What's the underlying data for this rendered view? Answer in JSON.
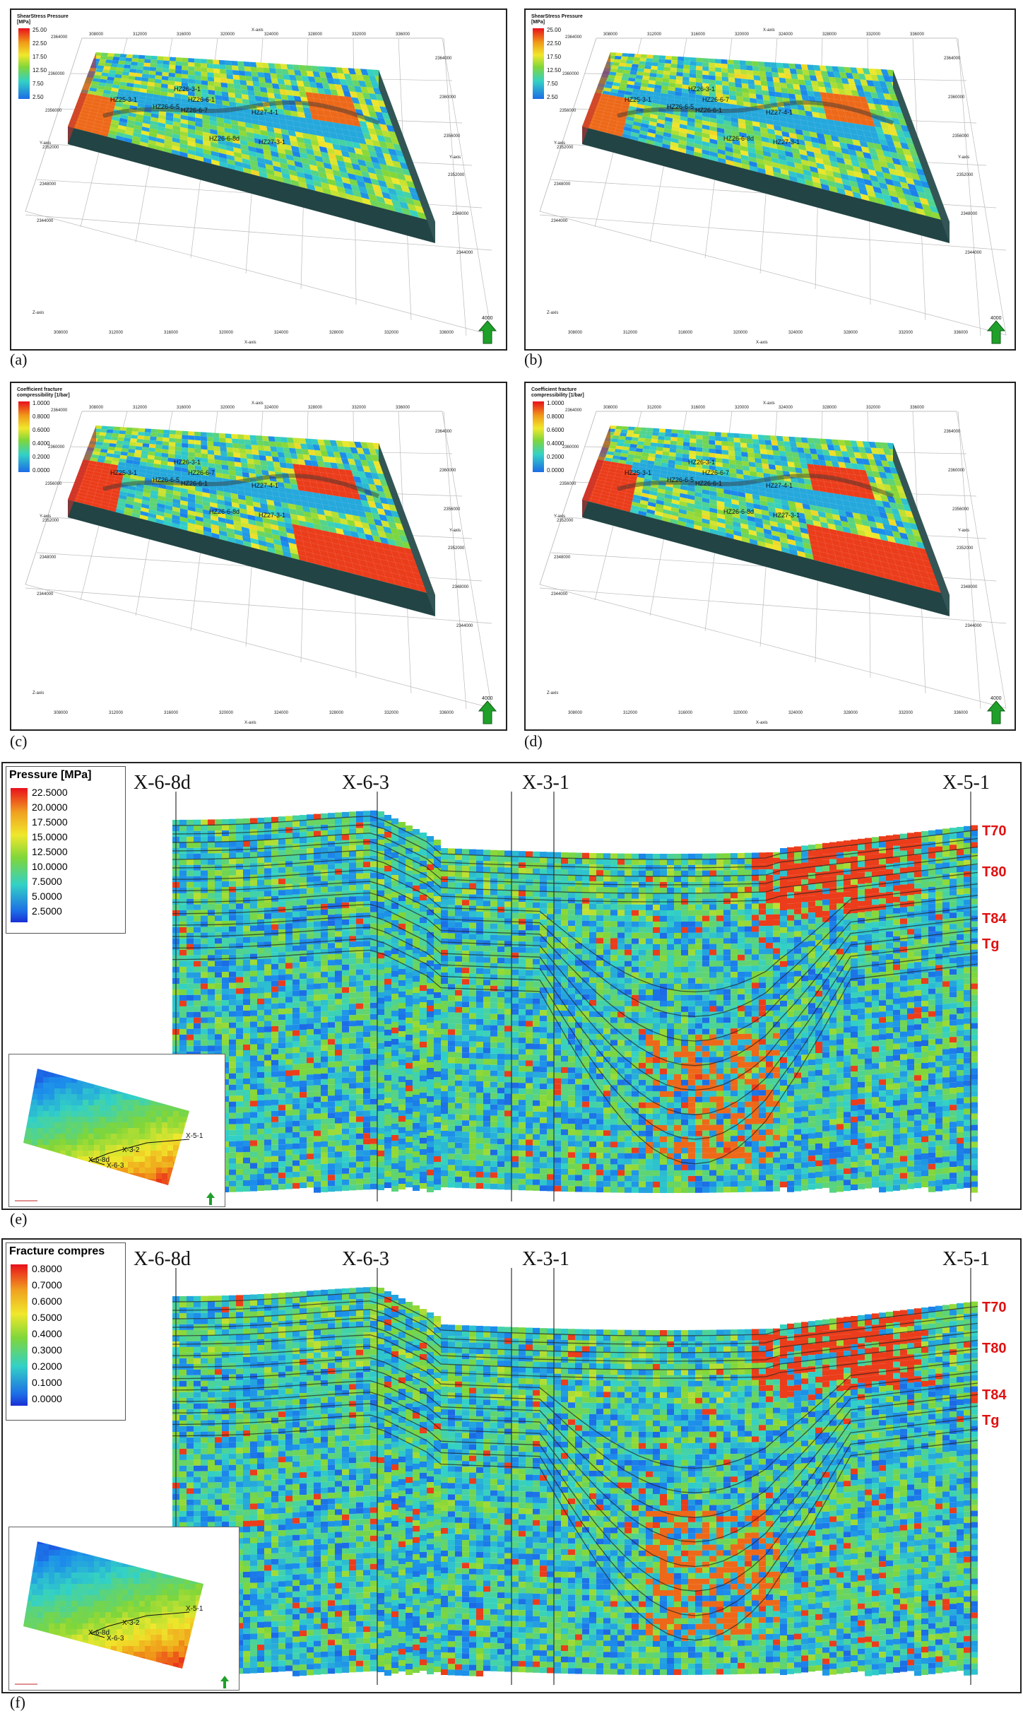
{
  "panels_3d": [
    {
      "caption": "(a)",
      "legend_title": "ShearStress Pressure [MPa]",
      "ticks": [
        "25.00",
        "22.50",
        "17.50",
        "12.50",
        "7.50",
        "2.50"
      ],
      "wells": [
        "HZ26-3-1",
        "HZ26-6-1",
        "HZ26-6-5",
        "HZ26-6-7",
        "HZ27-4-1",
        "HZ26-6-8d",
        "HZ27-3-1",
        "HZ25-3-1"
      ],
      "x_axis": "X-axis",
      "y_axis": "Y-axis",
      "z_axis": "Z-axis",
      "x_ticks": [
        "308000",
        "312000",
        "316000",
        "320000",
        "324000",
        "328000",
        "332000",
        "336000"
      ],
      "y_ticks": [
        "2364000",
        "2360000",
        "2356000",
        "2352000",
        "2348000",
        "2344000"
      ]
    },
    {
      "caption": "(b)",
      "legend_title": "ShearStress Pressure [MPa]",
      "ticks": [
        "25.00",
        "22.50",
        "17.50",
        "12.50",
        "7.50",
        "2.50"
      ],
      "wells": [
        "HZ26-3-1",
        "HZ26-6-7",
        "HZ26-6-5",
        "HZ26-6-1",
        "HZ27-4-1",
        "HZ26-6-8d",
        "HZ27-3-1",
        "HZ25-3-1"
      ],
      "x_axis": "X-axis",
      "y_axis": "Y-axis",
      "z_axis": "Z-axis",
      "x_ticks": [
        "308000",
        "312000",
        "316000",
        "320000",
        "324000",
        "328000",
        "332000",
        "336000"
      ],
      "y_ticks": [
        "2364000",
        "2360000",
        "2356000",
        "2352000",
        "2348000",
        "2344000"
      ]
    },
    {
      "caption": "(c)",
      "legend_title": "Coefficient fracture compressibility [1/bar]",
      "ticks": [
        "1.0000",
        "0.8000",
        "0.6000",
        "0.4000",
        "0.2000",
        "0.0000"
      ],
      "wells": [
        "HZ26-3-1",
        "HZ26-6-7",
        "HZ26-6-5",
        "HZ26-6-1",
        "HZ27-4-1",
        "HZ26-6-8d",
        "HZ27-3-1",
        "HZ25-3-1"
      ],
      "x_axis": "X-axis",
      "y_axis": "Y-axis",
      "z_axis": "Z-axis",
      "x_ticks": [
        "308000",
        "312000",
        "316000",
        "320000",
        "324000",
        "328000",
        "332000",
        "336000"
      ],
      "y_ticks": [
        "2364000",
        "2360000",
        "2356000",
        "2352000",
        "2348000",
        "2344000"
      ]
    },
    {
      "caption": "(d)",
      "legend_title": "Coefficient fracture compressibility [1/bar]",
      "ticks": [
        "1.0000",
        "0.8000",
        "0.6000",
        "0.4000",
        "0.2000",
        "0.0000"
      ],
      "wells": [
        "HZ26-3-1",
        "HZ26-6-7",
        "HZ26-6-5",
        "HZ26-6-1",
        "HZ27-4-1",
        "HZ26-6-8d",
        "HZ27-3-1",
        "HZ25-3-1"
      ],
      "x_axis": "X-axis",
      "y_axis": "Y-axis",
      "z_axis": "Z-axis",
      "x_ticks": [
        "308000",
        "312000",
        "316000",
        "320000",
        "324000",
        "328000",
        "332000",
        "336000"
      ],
      "y_ticks": [
        "2364000",
        "2360000",
        "2356000",
        "2352000",
        "2348000",
        "2344000"
      ]
    }
  ],
  "sections": [
    {
      "caption": "(e)",
      "legend_title": "Pressure [MPa]",
      "ticks": [
        "22.5000",
        "20.0000",
        "17.5000",
        "15.0000",
        "12.5000",
        "10.0000",
        "7.5000",
        "5.0000",
        "2.5000"
      ],
      "wells": [
        "X-6-8d",
        "X-6-3",
        "X-3-1",
        "X-5-1"
      ],
      "horizons": [
        "T70",
        "T80",
        "T84",
        "Tg"
      ],
      "map_wells": [
        "X-5-1",
        "X-3-2",
        "X-6-8d",
        "X-6-3"
      ]
    },
    {
      "caption": "(f)",
      "legend_title": "Fracture compres",
      "ticks": [
        "0.8000",
        "0.7000",
        "0.6000",
        "0.5000",
        "0.4000",
        "0.3000",
        "0.2000",
        "0.1000",
        "0.0000"
      ],
      "wells": [
        "X-6-8d",
        "X-6-3",
        "X-3-1",
        "X-5-1"
      ],
      "horizons": [
        "T70",
        "T80",
        "T84",
        "Tg"
      ],
      "map_wells": [
        "X-5-1",
        "X-3-2",
        "X-6-8d",
        "X-6-3"
      ]
    }
  ],
  "arrow_label": "4000"
}
